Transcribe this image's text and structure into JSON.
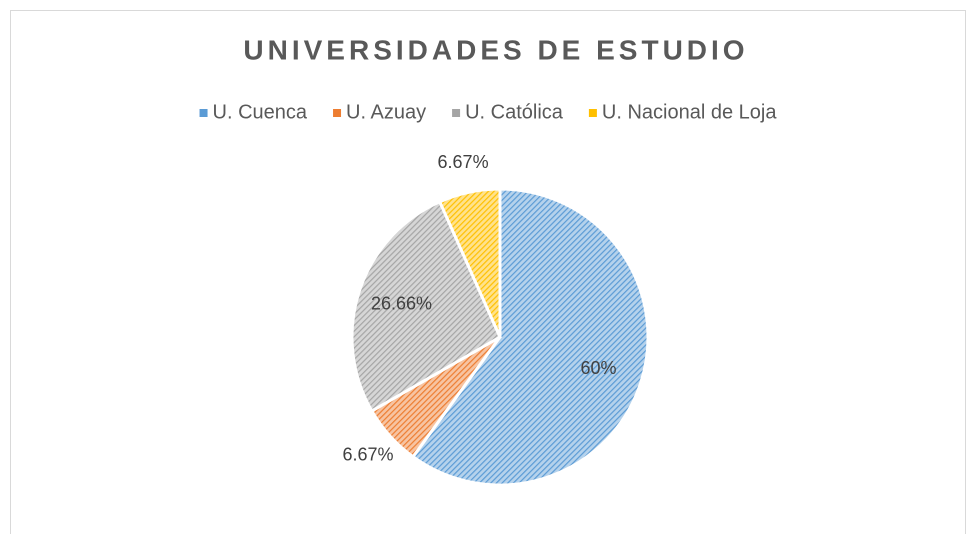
{
  "chart_data": {
    "type": "pie",
    "title": "UNIVERSIDADES DE ESTUDIO",
    "categories": [
      "U. Cuenca",
      "U. Azuay",
      "U. Católica",
      "U. Nacional de Loja"
    ],
    "values": [
      60,
      6.67,
      26.66,
      6.67
    ],
    "value_labels": [
      "60%",
      "6.67%",
      "26.66%",
      "6.67%"
    ],
    "colors": [
      "#5b9bd5",
      "#ed7d31",
      "#a5a5a5",
      "#ffc000"
    ],
    "legend": "top"
  }
}
